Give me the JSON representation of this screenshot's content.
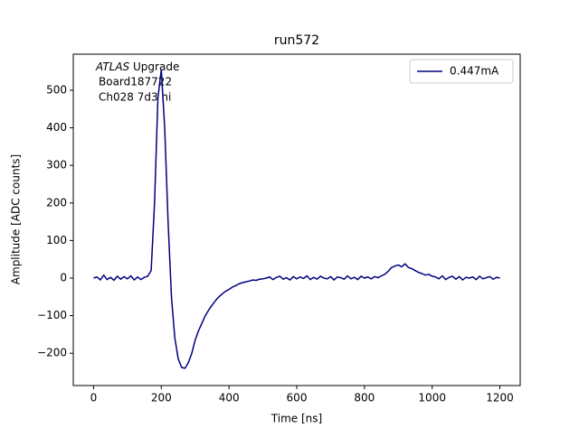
{
  "chart_data": {
    "type": "line",
    "title": "run572",
    "x_label": "Time [ns]",
    "y_label": "Amplitude [ADC counts]",
    "annotation": {
      "italic": "ATLAS",
      "lines": [
        "Upgrade",
        "Board187722",
        "Ch028 7d3 hi"
      ]
    },
    "x": [
      0,
      10,
      20,
      30,
      40,
      50,
      60,
      70,
      80,
      90,
      100,
      110,
      120,
      130,
      140,
      150,
      160,
      170,
      180,
      190,
      200,
      210,
      220,
      230,
      240,
      250,
      260,
      270,
      280,
      290,
      300,
      310,
      320,
      330,
      340,
      350,
      360,
      370,
      380,
      390,
      400,
      410,
      420,
      430,
      440,
      450,
      460,
      470,
      480,
      490,
      500,
      510,
      520,
      530,
      540,
      550,
      560,
      570,
      580,
      590,
      600,
      610,
      620,
      630,
      640,
      650,
      660,
      670,
      680,
      690,
      700,
      710,
      720,
      730,
      740,
      750,
      760,
      770,
      780,
      790,
      800,
      810,
      820,
      830,
      840,
      850,
      860,
      870,
      880,
      890,
      900,
      910,
      920,
      930,
      940,
      950,
      960,
      970,
      980,
      990,
      1000,
      1010,
      1020,
      1030,
      1040,
      1050,
      1060,
      1070,
      1080,
      1090,
      1100,
      1110,
      1120,
      1130,
      1140,
      1150,
      1160,
      1170,
      1180,
      1190,
      1200
    ],
    "series": [
      {
        "name": "0.447mA",
        "color": "#000080",
        "values": [
          0,
          3,
          -5,
          8,
          -4,
          2,
          -6,
          5,
          -3,
          4,
          -2,
          6,
          -5,
          3,
          -4,
          2,
          5,
          20,
          200,
          480,
          555,
          400,
          150,
          -50,
          -160,
          -215,
          -238,
          -240,
          -225,
          -200,
          -165,
          -140,
          -120,
          -100,
          -85,
          -72,
          -60,
          -50,
          -42,
          -35,
          -30,
          -24,
          -20,
          -15,
          -12,
          -10,
          -8,
          -5,
          -6,
          -3,
          -2,
          0,
          3,
          -4,
          2,
          5,
          -3,
          1,
          -5,
          4,
          -2,
          3,
          -1,
          6,
          -4,
          2,
          -3,
          5,
          0,
          -2,
          4,
          -5,
          3,
          1,
          -3,
          6,
          -2,
          2,
          -4,
          5,
          0,
          3,
          -2,
          4,
          1,
          6,
          10,
          18,
          28,
          32,
          35,
          30,
          38,
          28,
          25,
          20,
          15,
          12,
          8,
          10,
          5,
          3,
          -2,
          6,
          -4,
          2,
          5,
          -3,
          4,
          -5,
          2,
          0,
          3,
          -4,
          5,
          -2,
          1,
          4,
          -3,
          2,
          0
        ]
      }
    ],
    "xlim": [
      -60,
      1260
    ],
    "ylim": [
      -286,
      596
    ],
    "xticks": [
      0,
      200,
      400,
      600,
      800,
      1000,
      1200
    ],
    "yticks": [
      {
        "value": -200,
        "label": "−200"
      },
      {
        "value": -100,
        "label": "−100"
      },
      0,
      100,
      200,
      300,
      400,
      500
    ],
    "legend": "upper right"
  }
}
